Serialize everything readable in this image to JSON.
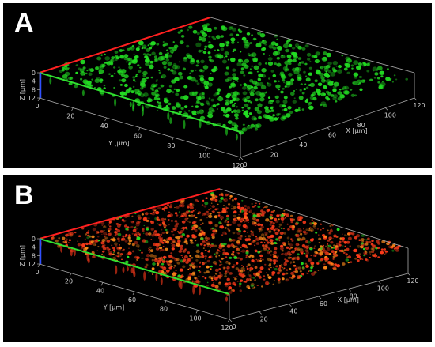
{
  "panels": [
    {
      "id": "A",
      "label": "A",
      "stain": "green",
      "z_axis": {
        "label": "Z [µm]",
        "ticks": [
          "0",
          "4",
          "8",
          "12"
        ]
      },
      "y_axis": {
        "label": "Y [µm]",
        "ticks": [
          "0",
          "20",
          "40",
          "60",
          "80",
          "100",
          "120"
        ]
      },
      "x_axis": {
        "label": "X [µm]",
        "ticks": [
          "0",
          "20",
          "40",
          "60",
          "80",
          "100",
          "120"
        ]
      }
    },
    {
      "id": "B",
      "label": "B",
      "stain": "red-green",
      "z_axis": {
        "label": "Z [µm]",
        "ticks": [
          "0",
          "4",
          "8",
          "12"
        ]
      },
      "y_axis": {
        "label": "Y [µm]",
        "ticks": [
          "0",
          "20",
          "40",
          "60",
          "80",
          "100",
          "120"
        ]
      },
      "x_axis": {
        "label": "X [µm]",
        "ticks": [
          "0",
          "20",
          "40",
          "60",
          "80",
          "100",
          "120"
        ]
      }
    }
  ],
  "colors": {
    "background": "#000000",
    "x_axis_line": "#ff2020",
    "y_axis_line": "#30e030",
    "z_axis_line": "#3050ff",
    "box_edge": "#aaaaaa",
    "green_cells": "#22dd22",
    "red_cells": "#ff3b1a",
    "orange_cells": "#ff8c1a"
  }
}
